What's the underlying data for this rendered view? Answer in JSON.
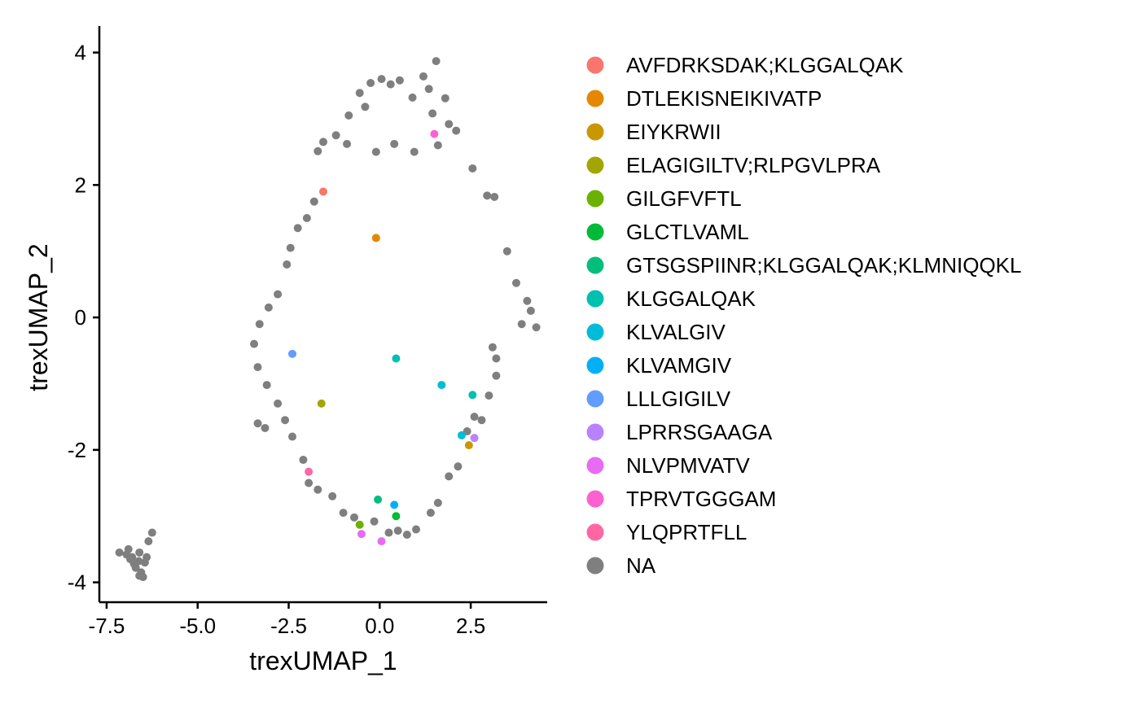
{
  "chart_data": {
    "type": "scatter",
    "title": "",
    "xlabel": "trexUMAP_1",
    "ylabel": "trexUMAP_2",
    "xlim": [
      -7.7,
      4.6
    ],
    "ylim": [
      -4.3,
      4.4
    ],
    "x_ticks": [
      -7.5,
      -5.0,
      -2.5,
      0.0,
      2.5
    ],
    "x_tick_labels": [
      "-7.5",
      "-5.0",
      "-2.5",
      "0.0",
      "2.5"
    ],
    "y_ticks": [
      -4,
      -2,
      0,
      2,
      4
    ],
    "y_tick_labels": [
      "-4",
      "-2",
      "0",
      "2",
      "4"
    ],
    "grid": false,
    "legend_position": "right",
    "series": [
      {
        "name": "AVFDRKSDAK;KLGGALQAK",
        "color": "#F8766D",
        "points": [
          [
            -1.55,
            1.9
          ]
        ]
      },
      {
        "name": "DTLEKISNEIKIVATP",
        "color": "#E58700",
        "points": [
          [
            -0.1,
            1.2
          ]
        ]
      },
      {
        "name": "EIYKRWII",
        "color": "#C99800",
        "points": [
          [
            2.45,
            -1.93
          ]
        ]
      },
      {
        "name": "ELAGIGILTV;RLPGVLPRA",
        "color": "#A3A500",
        "points": [
          [
            -1.6,
            -1.3
          ]
        ]
      },
      {
        "name": "GILGFVFTL",
        "color": "#6BB100",
        "points": [
          [
            -0.55,
            -3.13
          ]
        ]
      },
      {
        "name": "GLCTLVAML",
        "color": "#00BA38",
        "points": [
          [
            0.45,
            -3.0
          ]
        ]
      },
      {
        "name": "GTSGSPIINR;KLGGALQAK;KLMNIQQKL",
        "color": "#00BF7D",
        "points": [
          [
            -0.05,
            -2.75
          ]
        ]
      },
      {
        "name": "KLGGALQAK",
        "color": "#00C0AF",
        "points": [
          [
            0.45,
            -0.62
          ],
          [
            2.55,
            -1.17
          ]
        ]
      },
      {
        "name": "KLVALGIV",
        "color": "#00BCD8",
        "points": [
          [
            1.7,
            -1.02
          ],
          [
            2.25,
            -1.78
          ]
        ]
      },
      {
        "name": "KLVAMGIV",
        "color": "#00B0F6",
        "points": [
          [
            0.4,
            -2.83
          ]
        ]
      },
      {
        "name": "LLLGIGILV",
        "color": "#619CFF",
        "points": [
          [
            -2.4,
            -0.55
          ]
        ]
      },
      {
        "name": "LPRRSGAAGA",
        "color": "#B983FF",
        "points": [
          [
            2.6,
            -1.82
          ]
        ]
      },
      {
        "name": "NLVPMVATV",
        "color": "#E76BF3",
        "points": [
          [
            -0.5,
            -3.27
          ],
          [
            0.05,
            -3.38
          ]
        ]
      },
      {
        "name": "TPRVTGGGAM",
        "color": "#FD61D1",
        "points": [
          [
            1.5,
            2.77
          ]
        ]
      },
      {
        "name": "YLQPRTFLL",
        "color": "#FF67A4",
        "points": [
          [
            -1.95,
            -2.33
          ]
        ]
      },
      {
        "name": "NA",
        "color": "#7F7F7F",
        "points": [
          [
            -0.25,
            3.54
          ],
          [
            -0.55,
            3.39
          ],
          [
            0.3,
            3.52
          ],
          [
            0.9,
            3.32
          ],
          [
            1.35,
            3.45
          ],
          [
            1.55,
            3.87
          ],
          [
            1.8,
            3.31
          ],
          [
            1.2,
            3.64
          ],
          [
            0.55,
            3.58
          ],
          [
            0.05,
            3.6
          ],
          [
            -0.4,
            3.18
          ],
          [
            -0.85,
            3.05
          ],
          [
            1.45,
            3.08
          ],
          [
            1.9,
            2.92
          ],
          [
            -1.2,
            2.75
          ],
          [
            -1.55,
            2.65
          ],
          [
            -1.7,
            2.51
          ],
          [
            -0.9,
            2.62
          ],
          [
            -0.1,
            2.5
          ],
          [
            0.4,
            2.62
          ],
          [
            0.95,
            2.5
          ],
          [
            1.6,
            2.6
          ],
          [
            2.1,
            2.82
          ],
          [
            2.55,
            2.25
          ],
          [
            2.95,
            1.84
          ],
          [
            3.15,
            1.82
          ],
          [
            3.5,
            1.0
          ],
          [
            3.75,
            0.52
          ],
          [
            4.05,
            0.25
          ],
          [
            4.15,
            0.1
          ],
          [
            4.3,
            -0.15
          ],
          [
            3.9,
            -0.1
          ],
          [
            3.1,
            -0.45
          ],
          [
            3.2,
            -0.62
          ],
          [
            3.2,
            -0.88
          ],
          [
            3.0,
            -1.18
          ],
          [
            2.8,
            -1.55
          ],
          [
            2.6,
            -1.5
          ],
          [
            2.4,
            -1.72
          ],
          [
            2.15,
            -2.25
          ],
          [
            1.9,
            -2.4
          ],
          [
            1.6,
            -2.8
          ],
          [
            1.4,
            -2.95
          ],
          [
            1.0,
            -3.2
          ],
          [
            0.75,
            -3.28
          ],
          [
            0.5,
            -3.22
          ],
          [
            0.25,
            -3.25
          ],
          [
            -0.15,
            -3.08
          ],
          [
            -0.7,
            -3.02
          ],
          [
            -1.0,
            -2.95
          ],
          [
            -1.3,
            -2.7
          ],
          [
            -1.7,
            -2.6
          ],
          [
            -1.95,
            -2.5
          ],
          [
            -2.1,
            -2.15
          ],
          [
            -2.4,
            -1.8
          ],
          [
            -2.6,
            -1.55
          ],
          [
            -2.8,
            -1.3
          ],
          [
            -3.1,
            -1.02
          ],
          [
            -3.35,
            -0.75
          ],
          [
            -3.45,
            -0.4
          ],
          [
            -3.3,
            -0.1
          ],
          [
            -3.05,
            0.15
          ],
          [
            -2.8,
            0.35
          ],
          [
            -2.55,
            0.8
          ],
          [
            -2.45,
            1.05
          ],
          [
            -2.25,
            1.35
          ],
          [
            -2.0,
            1.5
          ],
          [
            -1.8,
            1.75
          ],
          [
            -3.35,
            -1.6
          ],
          [
            -3.15,
            -1.67
          ],
          [
            -6.95,
            -3.58
          ],
          [
            -6.8,
            -3.62
          ],
          [
            -6.6,
            -3.55
          ],
          [
            -6.45,
            -3.7
          ],
          [
            -6.7,
            -3.78
          ],
          [
            -6.55,
            -3.85
          ],
          [
            -6.4,
            -3.62
          ],
          [
            -6.6,
            -3.9
          ],
          [
            -6.75,
            -3.72
          ],
          [
            -6.35,
            -3.38
          ],
          [
            -6.25,
            -3.25
          ],
          [
            -6.9,
            -3.5
          ],
          [
            -7.15,
            -3.55
          ],
          [
            -6.5,
            -3.92
          ],
          [
            -6.85,
            -3.65
          ],
          [
            -6.62,
            -3.68
          ]
        ]
      }
    ]
  }
}
